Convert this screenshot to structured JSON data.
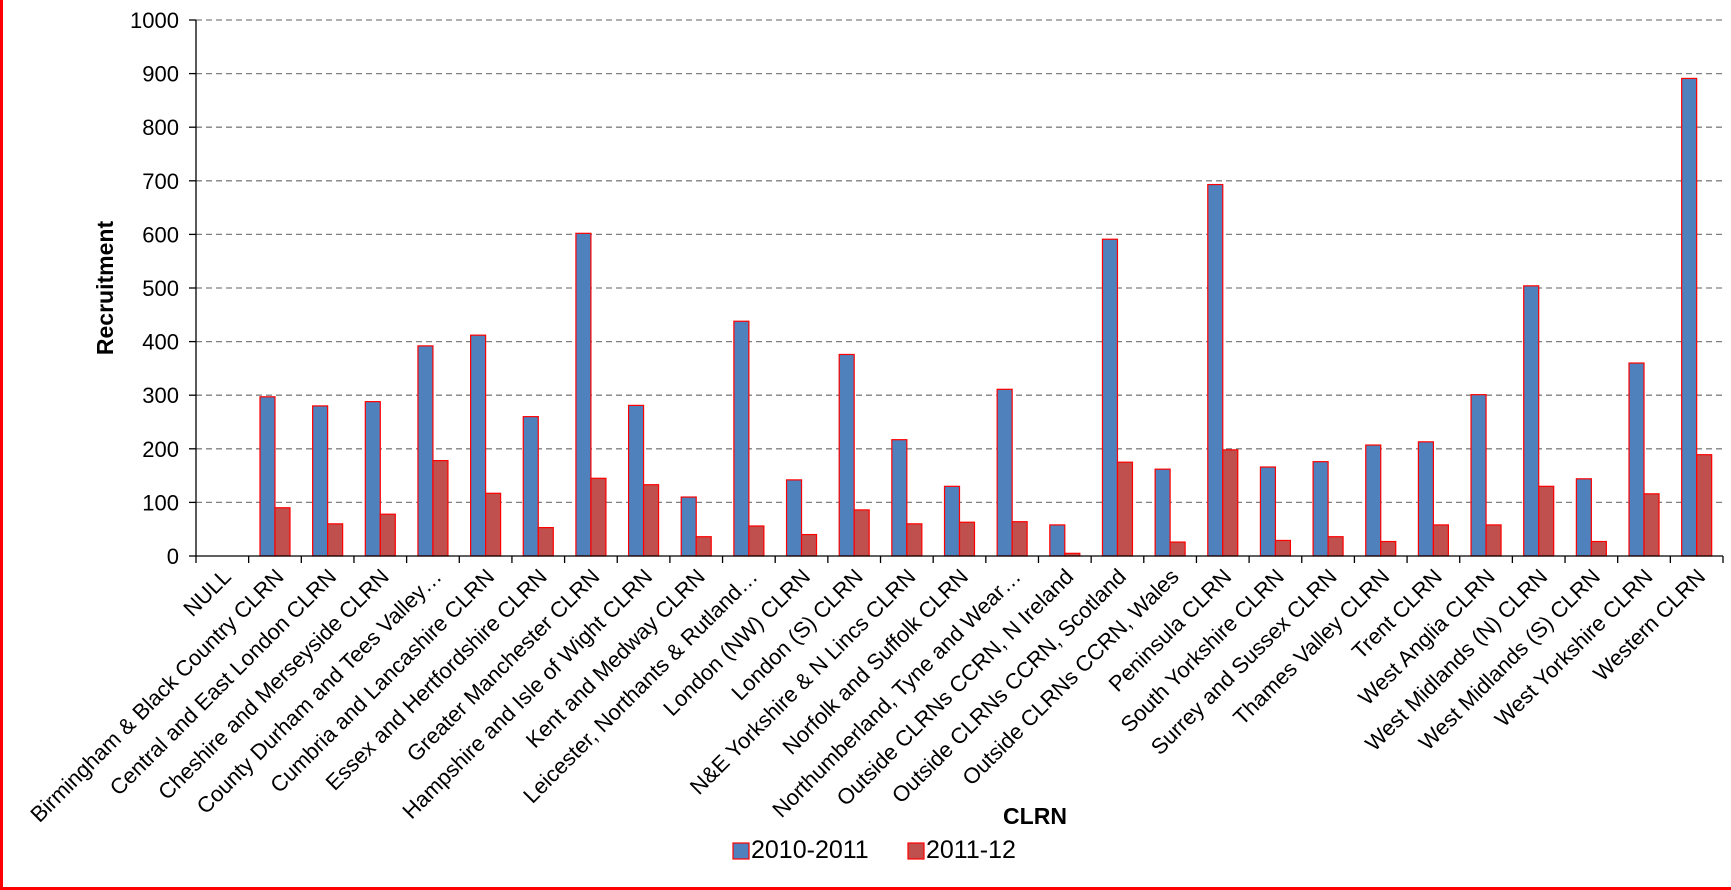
{
  "chart_data": {
    "type": "bar",
    "title": "",
    "xlabel": "CLRN",
    "ylabel": "Recruitment",
    "ylim": [
      0,
      1000
    ],
    "yticks": [
      0,
      100,
      200,
      300,
      400,
      500,
      600,
      700,
      800,
      900,
      1000
    ],
    "grid": true,
    "legend_position": "bottom",
    "categories": [
      "NULL",
      "Birmingham & Black Country CLRN",
      "Central and East London CLRN",
      "Cheshire and Merseyside CLRN",
      "County Durham and Tees Valley…",
      "Cumbria and Lancashire CLRN",
      "Essex and Hertfordshire CLRN",
      "Greater Manchester CLRN",
      "Hampshire and Isle of Wight CLRN",
      "Kent and Medway CLRN",
      "Leicester, Northants & Rutland…",
      "London (NW) CLRN",
      "London (S) CLRN",
      "N&E Yorkshire & N Lincs CLRN",
      "Norfolk and Suffolk CLRN",
      "Northumberland, Tyne and Wear…",
      "Outside CLRNs CCRN, N Ireland",
      "Outside CLRNs CCRN, Scotland",
      "Outside CLRNs CCRN, Wales",
      "Peninsula CLRN",
      "South Yorkshire CLRN",
      "Surrey and Sussex CLRN",
      "Thames Valley CLRN",
      "Trent CLRN",
      "West Anglia CLRN",
      "West Midlands (N) CLRN",
      "West Midlands (S) CLRN",
      "West Yorkshire CLRN",
      "Western CLRN"
    ],
    "series": [
      {
        "name": "2010-2011",
        "color": "#4f81bd",
        "values": [
          0,
          297,
          280,
          288,
          392,
          412,
          260,
          602,
          281,
          110,
          438,
          142,
          376,
          217,
          130,
          311,
          58,
          591,
          162,
          693,
          166,
          176,
          207,
          213,
          301,
          504,
          144,
          360,
          891
        ]
      },
      {
        "name": "2011-12",
        "color": "#c0504d",
        "values": [
          0,
          90,
          60,
          78,
          178,
          117,
          53,
          145,
          133,
          36,
          56,
          40,
          86,
          60,
          63,
          64,
          5,
          175,
          26,
          198,
          29,
          36,
          27,
          58,
          58,
          130,
          27,
          116,
          189
        ]
      }
    ]
  },
  "colors": {
    "bar_outline": "#ff0000",
    "frame": "#ff0000",
    "gridline": "#808080"
  }
}
